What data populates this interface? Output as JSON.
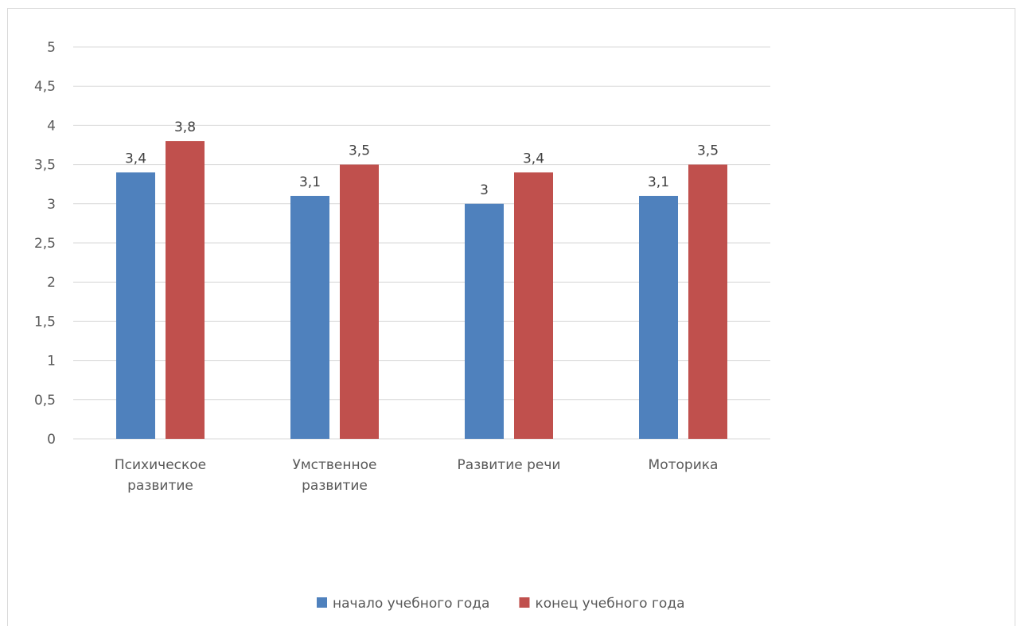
{
  "chart_data": {
    "type": "bar",
    "categories": [
      [
        "Психическое",
        "развитие"
      ],
      [
        "Умственное",
        "развитие"
      ],
      [
        "Развитие речи"
      ],
      [
        "Моторика"
      ]
    ],
    "series": [
      {
        "name": "начало учебного года",
        "color": "#4f81bd",
        "values": [
          3.4,
          3.1,
          3,
          3.1
        ],
        "labels": [
          "3,4",
          "3,1",
          "3",
          "3,1"
        ]
      },
      {
        "name": "конец учебного года",
        "color": "#c0504d",
        "values": [
          3.8,
          3.5,
          3.4,
          3.5
        ],
        "labels": [
          "3,8",
          "3,5",
          "3,4",
          "3,5"
        ]
      }
    ],
    "ylim": [
      0,
      5
    ],
    "y_ticks": [
      0,
      0.5,
      1,
      1.5,
      2,
      2.5,
      3,
      3.5,
      4,
      4.5,
      5
    ],
    "y_tick_labels": [
      "0",
      "0,5",
      "1",
      "1,5",
      "2",
      "2,5",
      "3",
      "3,5",
      "4",
      "4,5",
      "5"
    ],
    "grid": true,
    "legend_position": "bottom"
  }
}
